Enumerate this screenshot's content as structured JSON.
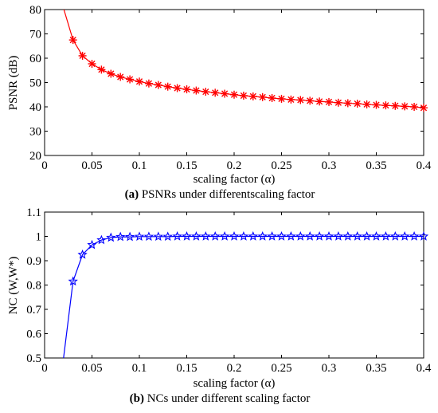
{
  "chart_data": [
    {
      "type": "line",
      "caption_label": "(a)",
      "caption_text": " PSNRs under differentscaling factor",
      "xlabel": "scaling factor (α)",
      "ylabel": "PSNR (dB)",
      "xlim": [
        0,
        0.4
      ],
      "ylim": [
        20,
        80
      ],
      "xticks": [
        "0",
        "0.05",
        "0.1",
        "0.15",
        "0.2",
        "0.25",
        "0.3",
        "0.35",
        "0.4"
      ],
      "yticks": [
        "20",
        "30",
        "40",
        "50",
        "60",
        "70",
        "80"
      ],
      "grid": false,
      "colors": {
        "line": "#ff0000",
        "marker": "#ff0000"
      },
      "marker": "asterisk",
      "series": [
        {
          "x": [
            0.02,
            0.03,
            0.04,
            0.05,
            0.06,
            0.07,
            0.08,
            0.09,
            0.1,
            0.11,
            0.12,
            0.13,
            0.14,
            0.15,
            0.16,
            0.17,
            0.18,
            0.19,
            0.2,
            0.21,
            0.22,
            0.23,
            0.24,
            0.25,
            0.26,
            0.27,
            0.28,
            0.29,
            0.3,
            0.31,
            0.32,
            0.33,
            0.34,
            0.35,
            0.36,
            0.37,
            0.38,
            0.39,
            0.4
          ],
          "y": [
            80.5,
            67.5,
            61.0,
            57.7,
            55.3,
            53.6,
            52.3,
            51.3,
            50.4,
            49.6,
            49.0,
            48.3,
            47.7,
            47.2,
            46.7,
            46.2,
            45.8,
            45.4,
            45.0,
            44.6,
            44.3,
            44.0,
            43.6,
            43.3,
            43.0,
            42.8,
            42.5,
            42.2,
            42.0,
            41.7,
            41.5,
            41.3,
            41.0,
            40.8,
            40.6,
            40.4,
            40.2,
            40.0,
            39.6
          ],
          "marker_from_index": 1
        }
      ]
    },
    {
      "type": "line",
      "caption_label": "(b)",
      "caption_text": " NCs under different scaling factor",
      "xlabel": "scaling factor (α)",
      "ylabel": "NC (W,W*)",
      "xlim": [
        0,
        0.4
      ],
      "ylim": [
        0.5,
        1.1
      ],
      "xticks": [
        "0",
        "0.05",
        "0.1",
        "0.15",
        "0.2",
        "0.25",
        "0.3",
        "0.35",
        "0.4"
      ],
      "yticks": [
        "0.5",
        "0.6",
        "0.7",
        "0.8",
        "0.9",
        "1",
        "1.1"
      ],
      "grid": false,
      "colors": {
        "line": "#0000ff",
        "marker": "#0000ff"
      },
      "marker": "pentagram",
      "series": [
        {
          "x": [
            0.02,
            0.03,
            0.04,
            0.05,
            0.06,
            0.07,
            0.08,
            0.09,
            0.1,
            0.11,
            0.12,
            0.13,
            0.14,
            0.15,
            0.16,
            0.17,
            0.18,
            0.19,
            0.2,
            0.21,
            0.22,
            0.23,
            0.24,
            0.25,
            0.26,
            0.27,
            0.28,
            0.29,
            0.3,
            0.31,
            0.32,
            0.33,
            0.34,
            0.35,
            0.36,
            0.37,
            0.38,
            0.39,
            0.4
          ],
          "y": [
            0.5,
            0.815,
            0.925,
            0.965,
            0.985,
            0.995,
            0.998,
            0.998,
            0.999,
            0.999,
            0.999,
            0.999,
            1.0,
            1.0,
            1.0,
            1.0,
            1.0,
            1.0,
            1.0,
            1.0,
            1.0,
            1.0,
            1.0,
            1.0,
            1.0,
            1.0,
            1.0,
            1.0,
            1.0,
            1.0,
            1.0,
            1.0,
            1.0,
            1.0,
            1.0,
            1.0,
            1.0,
            1.0,
            1.0
          ],
          "marker_from_index": 1
        }
      ]
    }
  ]
}
